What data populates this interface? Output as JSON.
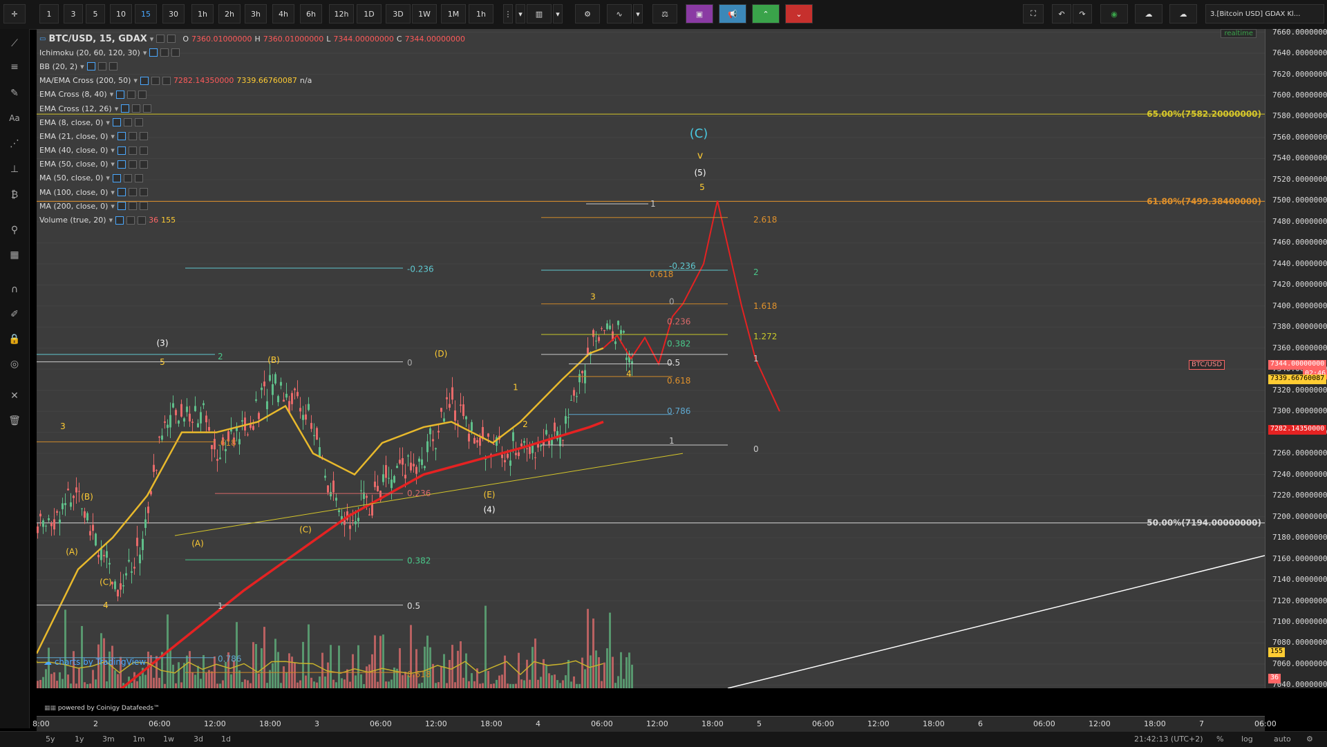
{
  "toolbar": {
    "intervals": [
      "1",
      "3",
      "5",
      "10",
      "15",
      "30",
      "1h",
      "2h",
      "3h",
      "4h",
      "6h",
      "12h",
      "1D",
      "3D",
      "1W",
      "1M",
      "1h"
    ],
    "active_interval": "15",
    "layout_name": "3.[Bitcoin USD] GDAX Kl..."
  },
  "legend": {
    "symbol": "BTC/USD, 15, GDAX",
    "ohlc": {
      "o_label": "O",
      "o": "7360.01000000",
      "h_label": "H",
      "h": "7360.01000000",
      "l_label": "L",
      "l": "7344.00000000",
      "c_label": "C",
      "c": "7344.00000000"
    },
    "indicators": [
      {
        "name": "Ichimoku (20, 60, 120, 30)",
        "values": ""
      },
      {
        "name": "BB (20, 2)",
        "values": ""
      },
      {
        "name": "MA/EMA Cross (200, 50)",
        "v1": "7282.14350000",
        "v2": "7339.66760087",
        "v3": "n/a"
      },
      {
        "name": "EMA Cross (8, 40)",
        "values": ""
      },
      {
        "name": "EMA Cross (12, 26)",
        "values": ""
      },
      {
        "name": "EMA (8, close, 0)",
        "values": ""
      },
      {
        "name": "EMA (21, close, 0)",
        "values": ""
      },
      {
        "name": "EMA (40, close, 0)",
        "values": ""
      },
      {
        "name": "EMA (50, close, 0)",
        "values": ""
      },
      {
        "name": "MA (50, close, 0)",
        "values": ""
      },
      {
        "name": "MA (100, close, 0)",
        "values": ""
      },
      {
        "name": "MA (200, close, 0)",
        "values": ""
      },
      {
        "name": "Volume (true, 20)",
        "v1": "36",
        "v2": "155"
      }
    ],
    "realtime": "realtime"
  },
  "chart_data": {
    "type": "candlestick",
    "symbol": "BTC/USD",
    "exchange": "GDAX",
    "interval": "15",
    "y_axis": {
      "ticks": [
        "7660.00000000",
        "7640.00000000",
        "7620.00000000",
        "7600.00000000",
        "7580.00000000",
        "7560.00000000",
        "7540.00000000",
        "7520.00000000",
        "7500.00000000",
        "7480.00000000",
        "7460.00000000",
        "7440.00000000",
        "7420.00000000",
        "7400.00000000",
        "7380.00000000",
        "7360.00000000",
        "7340.00000000",
        "7320.00000000",
        "7300.00000000",
        "7280.00000000",
        "7260.00000000",
        "7240.00000000",
        "7220.00000000",
        "7200.00000000",
        "7180.00000000",
        "7160.00000000",
        "7140.00000000",
        "7120.00000000",
        "7100.00000000",
        "7080.00000000",
        "7060.00000000",
        "7040.00000000"
      ],
      "range": [
        7037,
        7663
      ]
    },
    "x_axis": {
      "ticks": [
        "8:00",
        "2",
        "06:00",
        "12:00",
        "18:00",
        "3",
        "06:00",
        "12:00",
        "18:00",
        "4",
        "06:00",
        "12:00",
        "18:00",
        "5",
        "06:00",
        "12:00",
        "18:00",
        "6",
        "06:00",
        "12:00",
        "18:00",
        "7",
        "06:00"
      ]
    },
    "price_tags": [
      {
        "label": "BTC/USD",
        "value": "7344.00000000",
        "sub": "02:46"
      },
      {
        "value": "7339.66760087"
      },
      {
        "value": "7282.14350000"
      },
      {
        "value": "155"
      },
      {
        "value": "36"
      }
    ],
    "fib_retracement_levels": [
      {
        "label": "65.00%(7582.20000000)",
        "price": 7582.2
      },
      {
        "label": "61.80%(7499.38400000)",
        "price": 7499.384
      },
      {
        "label": "50.00%(7194.00000000)",
        "price": 7194.0
      }
    ],
    "projection_labels_left": [
      "-0.236",
      "0",
      "0.236",
      "0.382",
      "0.5",
      "0.618",
      "0.786",
      ".618",
      "1",
      "2"
    ],
    "projection_labels_right": [
      "2.618",
      "2",
      "1.618",
      "1.272",
      "1",
      "0.618",
      "-0.236",
      "0",
      "0.236",
      "0.382",
      "0.5",
      "0.618",
      "0.786",
      "1",
      "0",
      "1"
    ],
    "wave_labels": [
      "(C)",
      "v",
      "(5)",
      "5",
      "3",
      "4",
      "1",
      "2",
      "(E)",
      "(4)",
      "(D)",
      "(B)",
      "(C)",
      "(A)",
      "(3)",
      "5",
      "3",
      "(B)",
      "(A)",
      "(C)",
      "4"
    ],
    "series": [
      {
        "name": "MA (200)",
        "last": 7282.1435
      },
      {
        "name": "EMA (50)",
        "last": 7339.66760087
      }
    ]
  },
  "watermark": "charts by TradingView",
  "footer_note": "powered by Coinigy Datafeeds™",
  "bottom": {
    "ranges": [
      "5y",
      "1y",
      "3m",
      "1m",
      "1w",
      "3d",
      "1d"
    ],
    "clock": "21:42:13 (UTC+2)",
    "pct": "%",
    "log": "log",
    "auto": "auto"
  }
}
